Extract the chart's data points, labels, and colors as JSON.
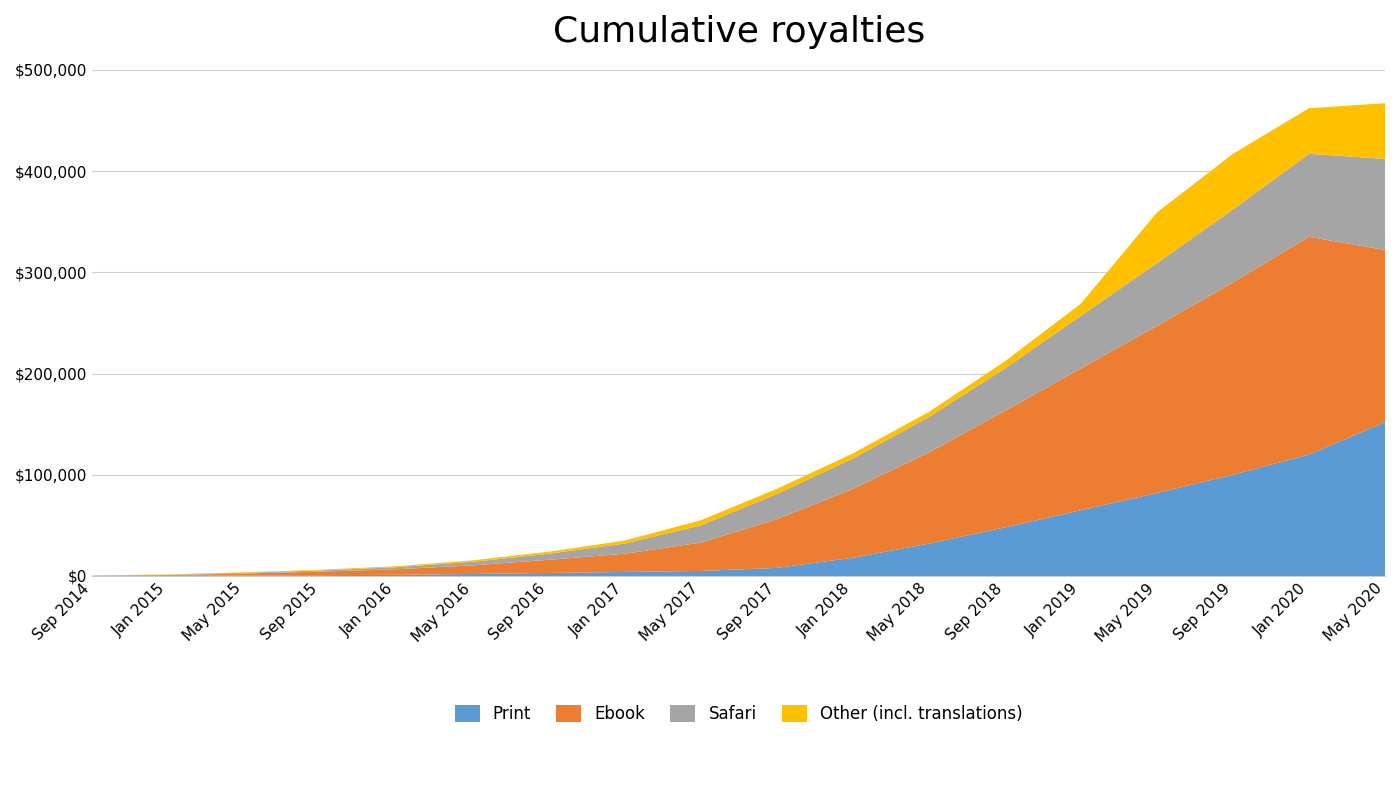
{
  "title": "Cumulative royalties",
  "title_fontsize": 26,
  "background_color": "#ffffff",
  "series_labels": [
    "Print",
    "Ebook",
    "Safari",
    "Other (incl. translations)"
  ],
  "series_colors": [
    "#5b9bd5",
    "#ed7d31",
    "#a5a5a5",
    "#ffc000"
  ],
  "x_labels": [
    "Sep 2014",
    "Jan 2015",
    "May 2015",
    "Sep 2015",
    "Jan 2016",
    "May 2016",
    "Sep 2016",
    "Jan 2017",
    "May 2017",
    "Sep 2017",
    "Jan 2018",
    "May 2018",
    "Sep 2018",
    "Jan 2019",
    "May 2019",
    "Sep 2019",
    "Jan 2020",
    "May 2020"
  ],
  "print_values": [
    0,
    200,
    500,
    800,
    1200,
    2000,
    3000,
    4000,
    5000,
    8000,
    18000,
    32000,
    48000,
    65000,
    82000,
    100000,
    120000,
    152000
  ],
  "ebook_values": [
    300,
    800,
    2000,
    3500,
    5500,
    8500,
    13000,
    18000,
    28000,
    48000,
    68000,
    90000,
    115000,
    140000,
    165000,
    190000,
    215000,
    170000
  ],
  "safari_values": [
    100,
    300,
    700,
    1200,
    2000,
    3500,
    6000,
    10000,
    17000,
    25000,
    30000,
    35000,
    42000,
    52000,
    62000,
    72000,
    82000,
    90000
  ],
  "other_values": [
    100,
    300,
    500,
    700,
    1000,
    1500,
    2000,
    3000,
    5000,
    5000,
    5000,
    5000,
    7000,
    12000,
    50000,
    55000,
    45000,
    55000
  ],
  "ylim": [
    0,
    500000
  ],
  "yticks": [
    0,
    100000,
    200000,
    300000,
    400000,
    500000
  ]
}
